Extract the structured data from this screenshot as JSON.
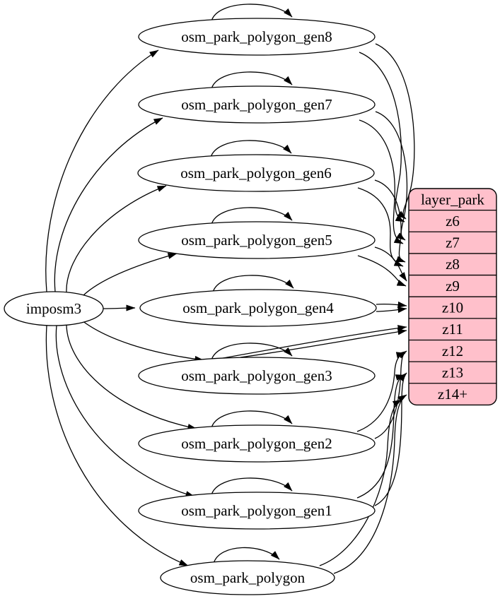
{
  "nodes": {
    "source": {
      "id": "imposm3",
      "label": "imposm3"
    },
    "tables": [
      {
        "id": "gen8",
        "label": "osm_park_polygon_gen8"
      },
      {
        "id": "gen7",
        "label": "osm_park_polygon_gen7"
      },
      {
        "id": "gen6",
        "label": "osm_park_polygon_gen6"
      },
      {
        "id": "gen5",
        "label": "osm_park_polygon_gen5"
      },
      {
        "id": "gen4",
        "label": "osm_park_polygon_gen4"
      },
      {
        "id": "gen3",
        "label": "osm_park_polygon_gen3"
      },
      {
        "id": "gen2",
        "label": "osm_park_polygon_gen2"
      },
      {
        "id": "gen1",
        "label": "osm_park_polygon_gen1"
      },
      {
        "id": "polygon",
        "label": "osm_park_polygon"
      }
    ]
  },
  "layer_table": {
    "title": "layer_park",
    "rows": [
      "z6",
      "z7",
      "z8",
      "z9",
      "z10",
      "z11",
      "z12",
      "z13",
      "z14+"
    ]
  },
  "edges": {
    "from_source_to": [
      "gen8",
      "gen7",
      "gen6",
      "gen5",
      "gen4",
      "gen3",
      "gen2",
      "gen1",
      "polygon"
    ],
    "self_loops": [
      "gen8",
      "gen7",
      "gen6",
      "gen5",
      "gen4",
      "gen3",
      "gen2",
      "gen1",
      "polygon"
    ],
    "table_to_zoom": [
      {
        "from": "gen8",
        "to": "z6"
      },
      {
        "from": "gen7",
        "to": "z7"
      },
      {
        "from": "gen6",
        "to": "z8"
      },
      {
        "from": "gen5",
        "to": "z9"
      },
      {
        "from": "gen4",
        "to": "z10"
      },
      {
        "from": "gen3",
        "to": "z11"
      },
      {
        "from": "gen2",
        "to": "z12"
      },
      {
        "from": "gen1",
        "to": "z13"
      },
      {
        "from": "polygon",
        "to": "z14+"
      }
    ]
  },
  "colors": {
    "layer_table_fill": "#ffc0cb",
    "node_fill": "#ffffff",
    "stroke": "#000000",
    "text": "#000000",
    "background": "#ffffff"
  }
}
